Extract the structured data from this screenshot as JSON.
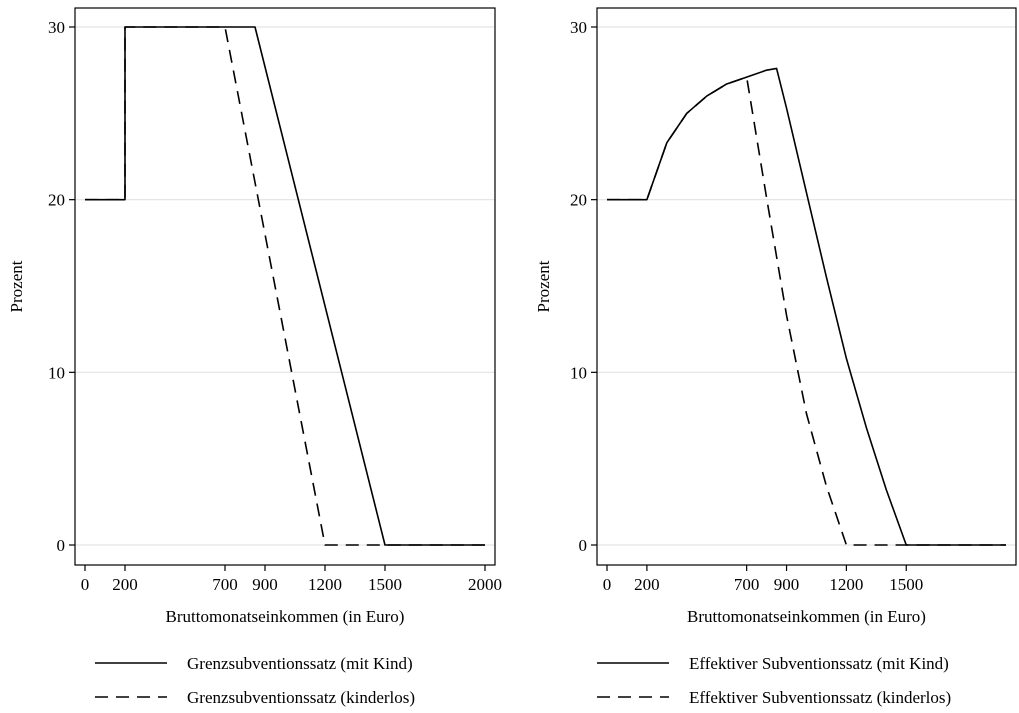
{
  "chart_data": [
    {
      "type": "line",
      "xlabel": "Bruttomonatseinkommen (in Euro)",
      "ylabel": "Prozent",
      "xlim": [
        0,
        2000
      ],
      "ylim": [
        0,
        30
      ],
      "xticks": [
        0,
        200,
        700,
        900,
        1200,
        1500,
        2000
      ],
      "yticks": [
        0,
        10,
        20,
        30
      ],
      "grid": "horizontal",
      "legend_position": "bottom",
      "series": [
        {
          "name": "Grenzsubventionssatz (mit Kind)",
          "style": "solid",
          "x": [
            0,
            200,
            200,
            850,
            1500,
            2000
          ],
          "y": [
            20,
            20,
            30,
            30,
            0,
            0
          ]
        },
        {
          "name": "Grenzsubventionssatz (kinderlos)",
          "style": "dashed",
          "x": [
            0,
            200,
            200,
            700,
            1200,
            2000
          ],
          "y": [
            20,
            20,
            30,
            30,
            0,
            0
          ]
        }
      ]
    },
    {
      "type": "line",
      "xlabel": "Bruttomonatseinkommen (in Euro)",
      "ylabel": "Prozent",
      "xlim": [
        0,
        2000
      ],
      "ylim": [
        0,
        30
      ],
      "xticks": [
        0,
        200,
        700,
        900,
        1200,
        1500
      ],
      "xticklabels": [
        "0",
        "200",
        "700",
        "900",
        "1200",
        "1500"
      ],
      "yticks": [
        0,
        10,
        20,
        30
      ],
      "grid": "horizontal",
      "legend_position": "bottom",
      "series": [
        {
          "name": "Effektiver Subventionssatz (mit Kind)",
          "style": "solid",
          "x": [
            0,
            200,
            300,
            400,
            500,
            600,
            700,
            800,
            850,
            900,
            1000,
            1100,
            1200,
            1300,
            1400,
            1500,
            2000
          ],
          "y": [
            20,
            20,
            23.3,
            25.0,
            26.0,
            26.7,
            27.1,
            27.5,
            27.6,
            25.3,
            20.4,
            15.5,
            10.8,
            6.8,
            3.2,
            0,
            0
          ]
        },
        {
          "name": "Effektiver Subventionssatz (kinderlos)",
          "style": "dashed",
          "x": [
            0,
            200,
            300,
            400,
            500,
            600,
            700,
            800,
            900,
            1000,
            1100,
            1200,
            2000
          ],
          "y": [
            20,
            20,
            23.3,
            25.0,
            26.0,
            26.7,
            27.1,
            20.1,
            13.3,
            7.6,
            3.4,
            0,
            0
          ]
        }
      ]
    }
  ]
}
